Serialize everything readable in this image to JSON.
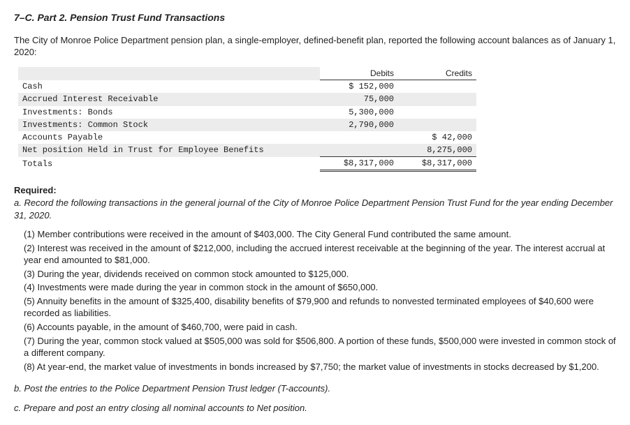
{
  "title": "7–C. Part 2. Pension Trust Fund Transactions",
  "intro": "The City of Monroe Police Department pension plan, a single-employer, defined-benefit plan, reported the following account balances as of January 1, 2020:",
  "table": {
    "headers": {
      "debits": "Debits",
      "credits": "Credits"
    },
    "rows": [
      {
        "acct": "Cash",
        "debit": "$  152,000",
        "credit": ""
      },
      {
        "acct": "Accrued Interest Receivable",
        "debit": "75,000",
        "credit": ""
      },
      {
        "acct": "Investments: Bonds",
        "debit": "5,300,000",
        "credit": ""
      },
      {
        "acct": "Investments: Common Stock",
        "debit": "2,790,000",
        "credit": ""
      },
      {
        "acct": "Accounts Payable",
        "debit": "",
        "credit": "$   42,000"
      },
      {
        "acct": "Net position Held in Trust for Employee Benefits",
        "debit": "",
        "credit": "8,275,000"
      }
    ],
    "totals": {
      "acct": "Totals",
      "debit": "$8,317,000",
      "credit": "$8,317,000"
    }
  },
  "required_label": "Required:",
  "req_a": "a. Record the following transactions in the general journal of the City of Monroe Police Department Pension Trust Fund for the year ending December 31, 2020.",
  "items": [
    "(1) Member contributions were received in the amount of $403,000. The City General Fund contributed the same amount.",
    "(2) Interest was received in the amount of $212,000, including the accrued interest receivable at the beginning of the year. The interest accrual at year end amounted to $81,000.",
    "(3) During the year, dividends received on common stock amounted to $125,000.",
    "(4) Investments were made during the year in common stock in the amount of $650,000.",
    "(5) Annuity benefits in the amount of $325,400, disability benefits of $79,900 and refunds to nonvested terminated employees of $40,600 were recorded as liabilities.",
    "(6) Accounts payable, in the amount of $460,700, were paid in cash.",
    "(7) During the year, common stock valued at $505,000 was sold for $506,800. A portion of these funds, $500,000 were invested in common stock of a different company.",
    "(8) At year-end, the market value of investments in bonds increased by $7,750; the market value of investments in stocks decreased by $1,200."
  ],
  "req_b": "b. Post the entries to the Police Department Pension Trust ledger (T-accounts).",
  "req_c": "c. Prepare and post an entry closing all nominal accounts to Net position."
}
